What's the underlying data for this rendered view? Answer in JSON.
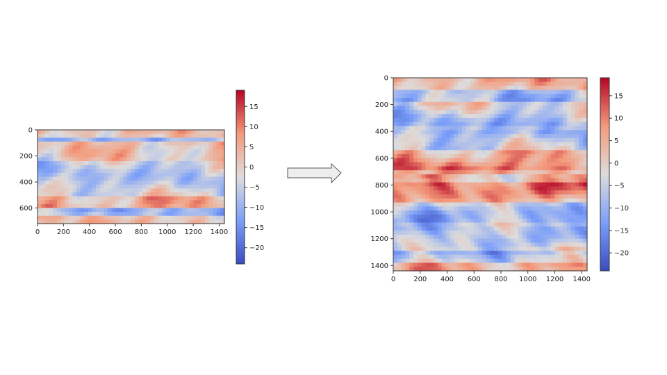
{
  "chart_data": [
    {
      "type": "heatmap",
      "title": "",
      "xlabel": "",
      "ylabel": "",
      "xlim": [
        0,
        1440
      ],
      "ylim": [
        720,
        0
      ],
      "x_ticks": [
        0,
        200,
        400,
        600,
        800,
        1000,
        1200,
        1400
      ],
      "y_ticks": [
        0,
        200,
        400,
        600
      ],
      "colormap": "coolwarm",
      "colorbar": {
        "range": [
          -24,
          19
        ],
        "ticks": [
          15,
          10,
          5,
          0,
          -5,
          -10,
          -15,
          -20
        ]
      }
    },
    {
      "type": "heatmap",
      "title": "",
      "xlabel": "",
      "ylabel": "",
      "xlim": [
        0,
        1440
      ],
      "ylim": [
        1440,
        0
      ],
      "x_ticks": [
        0,
        200,
        400,
        600,
        800,
        1000,
        1200,
        1400
      ],
      "y_ticks": [
        0,
        200,
        400,
        600,
        800,
        1000,
        1200,
        1400
      ],
      "colormap": "coolwarm",
      "colorbar": {
        "range": [
          -24,
          19
        ],
        "ticks": [
          15,
          10,
          5,
          0,
          -5,
          -10,
          -15,
          -20
        ]
      }
    }
  ],
  "arrow": {
    "icon": "right-arrow-icon",
    "fill": "#eeeeee",
    "stroke": "#555555"
  },
  "colors": {
    "cold": "#3b4cc0",
    "neutral": "#dddddd",
    "warm": "#b40426"
  }
}
